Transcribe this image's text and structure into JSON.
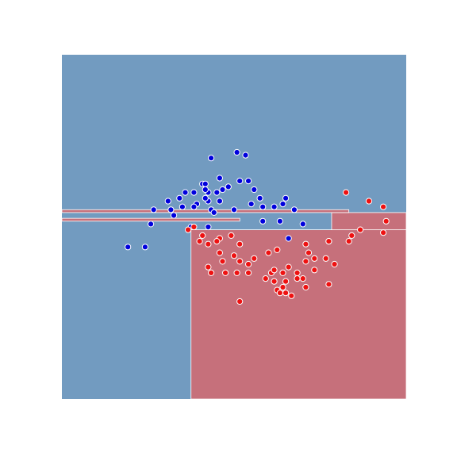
{
  "chart_data": {
    "type": "scatter",
    "title": "",
    "xlabel": "",
    "ylabel": "",
    "xlim": [
      -3.1,
      2.9
    ],
    "ylim": [
      -3.3,
      2.7
    ],
    "axes_visible": false,
    "grid": false,
    "legend": "none",
    "colors": {
      "blue_region": "#729bc0",
      "red_region": "#c6707b",
      "blue_point": "#0000dd",
      "red_point": "#ee1111",
      "boundary": "#ffffff"
    },
    "decision_regions": [
      {
        "class": "red",
        "x": [
          -0.85,
          2.9
        ],
        "y": [
          -3.3,
          -0.35
        ]
      },
      {
        "class": "red",
        "x": [
          1.6,
          2.9
        ],
        "y": [
          -0.35,
          -0.05
        ]
      },
      {
        "class": "red",
        "x": [
          -3.1,
          1.9
        ],
        "y": [
          -0.05,
          0.0
        ]
      },
      {
        "class": "red",
        "x": [
          -3.1,
          0.0
        ],
        "y": [
          -0.2,
          -0.15
        ]
      }
    ],
    "series": [
      {
        "class": "blue",
        "points": [
          [
            -0.5,
            0.9
          ],
          [
            0.0,
            0.5
          ],
          [
            -0.2,
            0.4
          ],
          [
            -0.1,
            0.0
          ],
          [
            0.15,
            0.5
          ],
          [
            -0.05,
            1.0
          ],
          [
            0.1,
            0.95
          ],
          [
            -0.35,
            0.55
          ],
          [
            -0.4,
            0.3
          ],
          [
            -0.35,
            0.15
          ],
          [
            -0.55,
            0.15
          ],
          [
            -0.6,
            0.2
          ],
          [
            -0.75,
            0.1
          ],
          [
            -0.65,
            0.45
          ],
          [
            -0.8,
            0.3
          ],
          [
            -0.55,
            0.3
          ],
          [
            -0.3,
            0.35
          ],
          [
            -0.5,
            0.0
          ],
          [
            -0.45,
            -0.05
          ],
          [
            -0.95,
            0.3
          ],
          [
            -1.05,
            0.2
          ],
          [
            -1.25,
            0.15
          ],
          [
            -1.0,
            0.05
          ],
          [
            -1.2,
            0.0
          ],
          [
            -1.15,
            -0.1
          ],
          [
            -1.5,
            0.0
          ],
          [
            -1.55,
            -0.25
          ],
          [
            -1.95,
            -0.65
          ],
          [
            -1.65,
            -0.65
          ],
          [
            -0.6,
            0.45
          ],
          [
            -0.6,
            0.35
          ],
          [
            -0.85,
            -0.3
          ],
          [
            -0.55,
            -0.3
          ],
          [
            -0.8,
            0.05
          ],
          [
            0.25,
            0.35
          ],
          [
            0.2,
            0.1
          ],
          [
            0.35,
            0.2
          ],
          [
            0.4,
            -0.2
          ],
          [
            0.6,
            0.05
          ],
          [
            0.7,
            -0.2
          ],
          [
            0.75,
            0.1
          ],
          [
            0.8,
            0.2
          ],
          [
            0.95,
            0.0
          ],
          [
            1.1,
            -0.25
          ],
          [
            0.85,
            -0.5
          ],
          [
            0.4,
            0.05
          ]
        ]
      },
      {
        "class": "red",
        "points": [
          [
            -0.35,
            -0.5
          ],
          [
            -0.1,
            -0.8
          ],
          [
            -0.3,
            -0.9
          ],
          [
            -0.55,
            -0.6
          ],
          [
            -0.7,
            -0.55
          ],
          [
            -0.9,
            -0.35
          ],
          [
            -0.8,
            -0.3
          ],
          [
            -0.4,
            -0.55
          ],
          [
            -0.5,
            -1.1
          ],
          [
            -0.55,
            -1.0
          ],
          [
            -0.25,
            -1.1
          ],
          [
            -0.05,
            -1.1
          ],
          [
            0.15,
            -1.1
          ],
          [
            0.15,
            -0.95
          ],
          [
            0.0,
            -0.6
          ],
          [
            0.0,
            -0.9
          ],
          [
            0.25,
            -0.85
          ],
          [
            0.5,
            -0.75
          ],
          [
            0.65,
            -0.7
          ],
          [
            0.55,
            -1.1
          ],
          [
            0.45,
            -1.2
          ],
          [
            0.6,
            -1.05
          ],
          [
            0.75,
            -1.1
          ],
          [
            0.85,
            -1.0
          ],
          [
            1.0,
            -1.2
          ],
          [
            1.0,
            -1.1
          ],
          [
            1.15,
            -0.9
          ],
          [
            1.15,
            -0.6
          ],
          [
            0.75,
            -1.35
          ],
          [
            0.65,
            -1.4
          ],
          [
            0.6,
            -1.25
          ],
          [
            0.8,
            -1.25
          ],
          [
            1.15,
            -1.35
          ],
          [
            1.3,
            -1.05
          ],
          [
            1.3,
            -0.85
          ],
          [
            1.1,
            -1.2
          ],
          [
            1.2,
            -0.75
          ],
          [
            0.8,
            -1.45
          ],
          [
            0.7,
            -1.45
          ],
          [
            1.55,
            -1.3
          ],
          [
            1.65,
            -0.95
          ],
          [
            1.5,
            -0.85
          ],
          [
            1.55,
            -0.55
          ],
          [
            1.9,
            -0.55
          ],
          [
            2.1,
            -0.35
          ],
          [
            1.95,
            -0.45
          ],
          [
            2.5,
            -0.4
          ],
          [
            2.55,
            -0.2
          ],
          [
            2.5,
            0.05
          ],
          [
            1.85,
            0.3
          ],
          [
            1.55,
            -0.55
          ],
          [
            2.25,
            0.15
          ],
          [
            -0.65,
            -0.45
          ],
          [
            -0.35,
            -0.75
          ],
          [
            -0.15,
            -0.45
          ],
          [
            0.0,
            -1.6
          ],
          [
            0.9,
            -1.5
          ]
        ]
      }
    ]
  }
}
